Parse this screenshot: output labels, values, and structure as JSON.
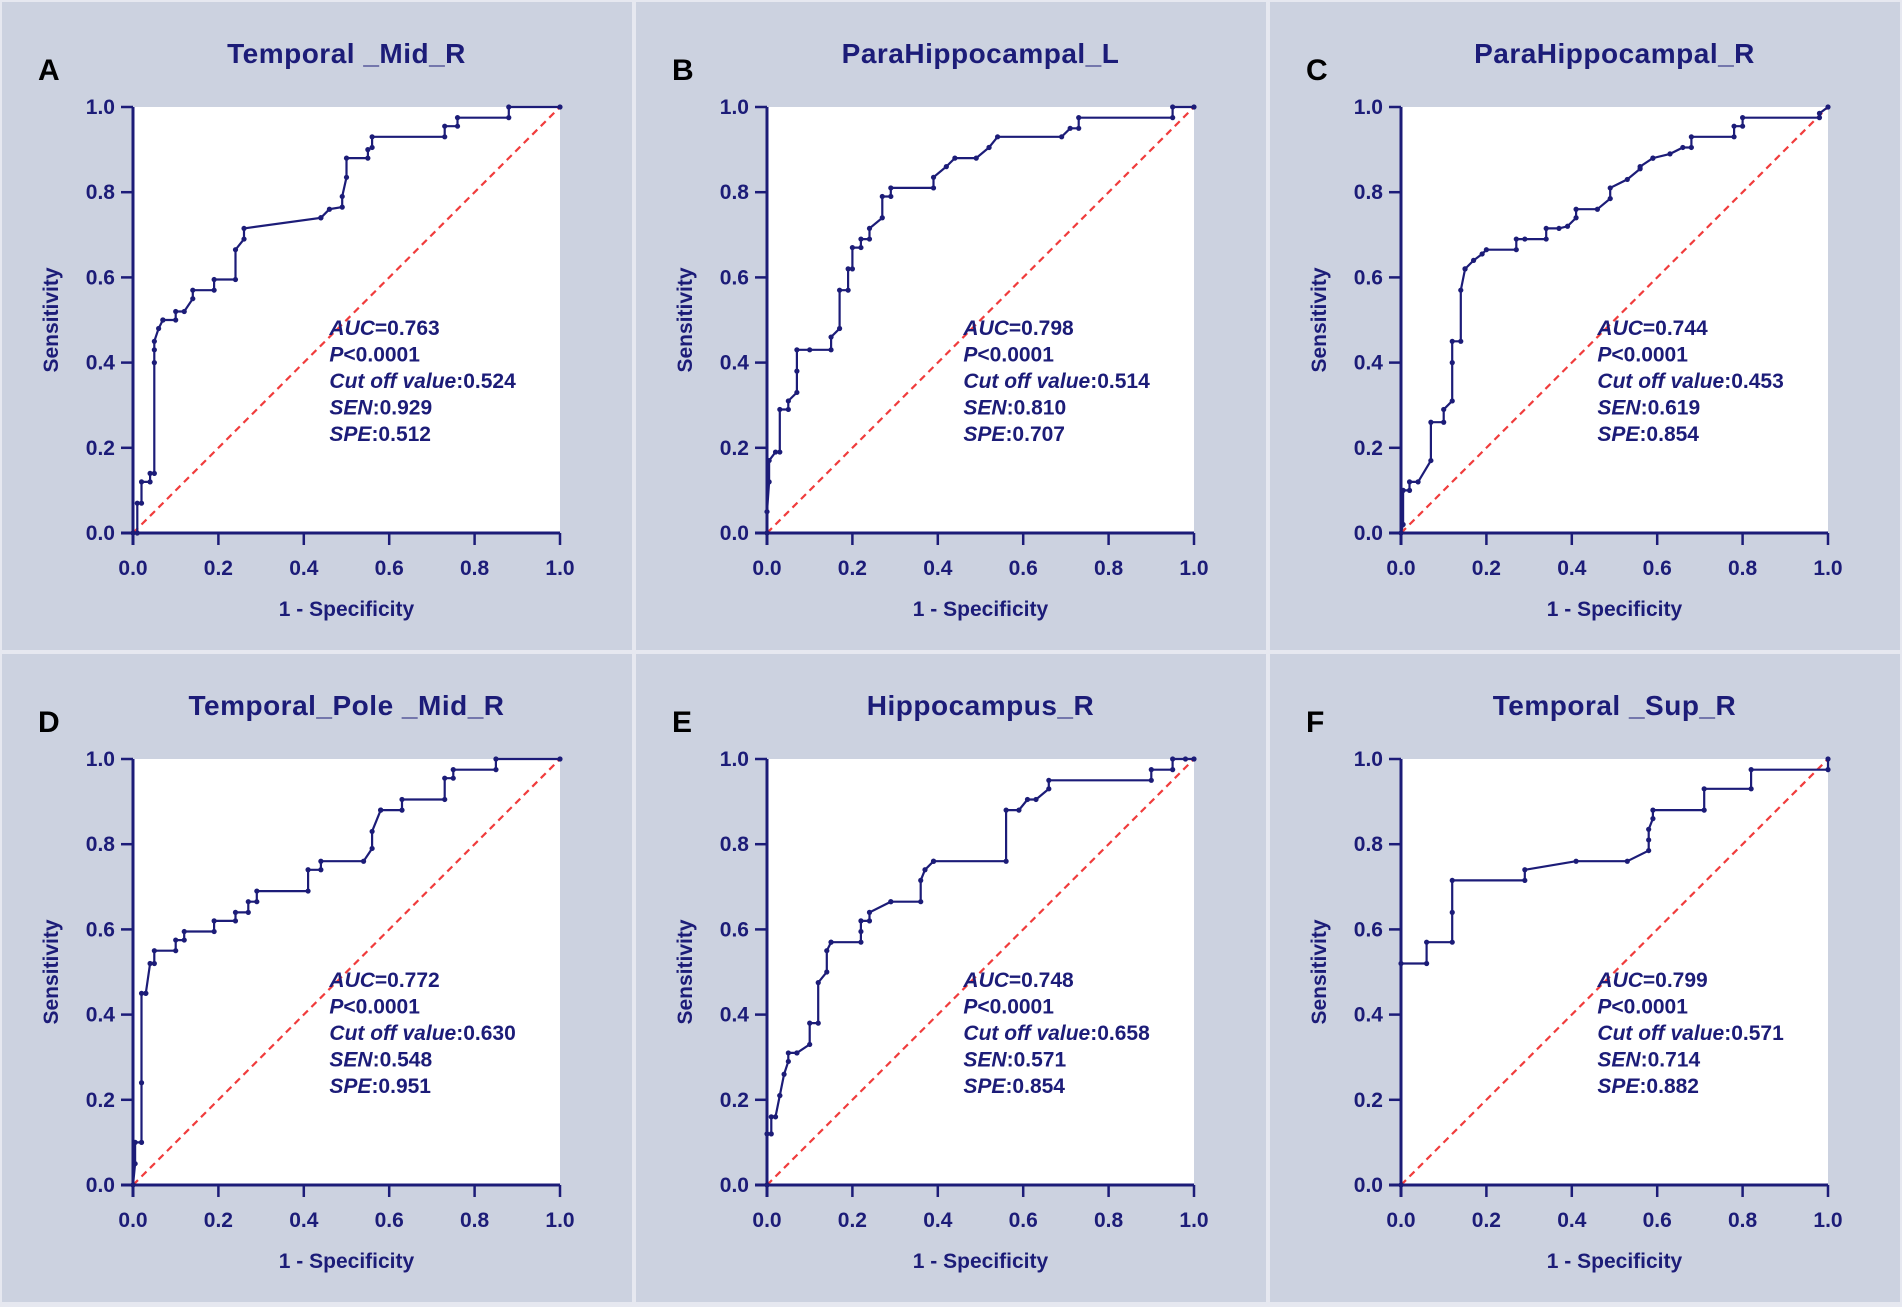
{
  "figure": {
    "xlabel": "1 - Specificity",
    "ylabel": "Sensitivity",
    "xticks": [
      "0.0",
      "0.2",
      "0.4",
      "0.6",
      "0.8",
      "1.0"
    ],
    "yticks": [
      "0.0",
      "0.2",
      "0.4",
      "0.6",
      "0.8",
      "1.0"
    ]
  },
  "chart_data": [
    {
      "type": "line",
      "panel": "A",
      "title": "Temporal _Mid_R",
      "xlabel": "1 - Specificity",
      "ylabel": "Sensitivity",
      "xlim": [
        0,
        1
      ],
      "ylim": [
        0,
        1
      ],
      "series": [
        {
          "name": "ROC",
          "x": [
            0,
            0.01,
            0.01,
            0.02,
            0.02,
            0.04,
            0.04,
            0.05,
            0.05,
            0.05,
            0.05,
            0.06,
            0.07,
            0.07,
            0.1,
            0.1,
            0.12,
            0.14,
            0.14,
            0.19,
            0.19,
            0.24,
            0.24,
            0.26,
            0.26,
            0.44,
            0.44,
            0.46,
            0.49,
            0.49,
            0.5,
            0.5,
            0.55,
            0.55,
            0.56,
            0.56,
            0.73,
            0.73,
            0.76,
            0.76,
            0.88,
            0.88,
            1.0
          ],
          "y": [
            0,
            0,
            0.07,
            0.07,
            0.12,
            0.12,
            0.14,
            0.14,
            0.4,
            0.43,
            0.45,
            0.48,
            0.5,
            0.5,
            0.5,
            0.52,
            0.52,
            0.55,
            0.57,
            0.57,
            0.595,
            0.595,
            0.665,
            0.69,
            0.715,
            0.74,
            0.74,
            0.76,
            0.765,
            0.79,
            0.835,
            0.88,
            0.88,
            0.9,
            0.905,
            0.93,
            0.93,
            0.955,
            0.955,
            0.975,
            0.975,
            1.0,
            1.0
          ]
        },
        {
          "name": "Reference",
          "x": [
            0,
            1
          ],
          "y": [
            0,
            1
          ]
        }
      ],
      "stats": {
        "auc": "0.763",
        "p": "0.0001",
        "cutoff": "0.524",
        "sen": "0.929",
        "spe": "0.512"
      }
    },
    {
      "type": "line",
      "panel": "B",
      "title": "ParaHippocampal_L",
      "xlabel": "1 - Specificity",
      "ylabel": "Sensitivity",
      "xlim": [
        0,
        1
      ],
      "ylim": [
        0,
        1
      ],
      "series": [
        {
          "name": "ROC",
          "x": [
            0,
            0,
            0.005,
            0.005,
            0.02,
            0.03,
            0.03,
            0.05,
            0.05,
            0.07,
            0.07,
            0.07,
            0.1,
            0.15,
            0.15,
            0.17,
            0.17,
            0.19,
            0.19,
            0.2,
            0.2,
            0.22,
            0.22,
            0.24,
            0.24,
            0.27,
            0.27,
            0.29,
            0.29,
            0.39,
            0.39,
            0.42,
            0.44,
            0.49,
            0.52,
            0.52,
            0.54,
            0.69,
            0.71,
            0.73,
            0.73,
            0.95,
            0.95,
            1.0
          ],
          "y": [
            0,
            0.05,
            0.12,
            0.17,
            0.19,
            0.19,
            0.29,
            0.29,
            0.31,
            0.33,
            0.38,
            0.43,
            0.43,
            0.43,
            0.46,
            0.48,
            0.57,
            0.57,
            0.62,
            0.62,
            0.67,
            0.67,
            0.69,
            0.69,
            0.715,
            0.74,
            0.79,
            0.79,
            0.81,
            0.81,
            0.835,
            0.86,
            0.88,
            0.88,
            0.905,
            0.905,
            0.93,
            0.93,
            0.95,
            0.95,
            0.975,
            0.975,
            1.0,
            1.0
          ]
        },
        {
          "name": "Reference",
          "x": [
            0,
            1
          ],
          "y": [
            0,
            1
          ]
        }
      ],
      "stats": {
        "auc": "0.798",
        "p": "0.0001",
        "cutoff": "0.514",
        "sen": "0.810",
        "spe": "0.707"
      }
    },
    {
      "type": "line",
      "panel": "C",
      "title": "ParaHippocampal_R",
      "xlabel": "1 - Specificity",
      "ylabel": "Sensitivity",
      "xlim": [
        0,
        1
      ],
      "ylim": [
        0,
        1
      ],
      "series": [
        {
          "name": "ROC",
          "x": [
            0,
            0.005,
            0.005,
            0.02,
            0.02,
            0.04,
            0.07,
            0.07,
            0.1,
            0.1,
            0.12,
            0.12,
            0.12,
            0.14,
            0.14,
            0.15,
            0.15,
            0.17,
            0.19,
            0.2,
            0.27,
            0.27,
            0.29,
            0.34,
            0.34,
            0.37,
            0.39,
            0.41,
            0.41,
            0.46,
            0.49,
            0.49,
            0.53,
            0.56,
            0.56,
            0.59,
            0.59,
            0.63,
            0.66,
            0.68,
            0.68,
            0.78,
            0.78,
            0.8,
            0.8,
            0.98,
            0.98,
            1.0
          ],
          "y": [
            0,
            0.02,
            0.1,
            0.1,
            0.12,
            0.12,
            0.17,
            0.26,
            0.26,
            0.29,
            0.31,
            0.4,
            0.45,
            0.45,
            0.57,
            0.62,
            0.62,
            0.64,
            0.655,
            0.665,
            0.665,
            0.69,
            0.69,
            0.69,
            0.715,
            0.715,
            0.72,
            0.74,
            0.76,
            0.76,
            0.785,
            0.81,
            0.83,
            0.855,
            0.86,
            0.88,
            0.88,
            0.89,
            0.905,
            0.905,
            0.93,
            0.93,
            0.955,
            0.955,
            0.975,
            0.975,
            0.985,
            1.0
          ]
        },
        {
          "name": "Reference",
          "x": [
            0,
            1
          ],
          "y": [
            0,
            1
          ]
        }
      ],
      "stats": {
        "auc": "0.744",
        "p": "0.0001",
        "cutoff": "0.453",
        "sen": "0.619",
        "spe": "0.854"
      }
    },
    {
      "type": "line",
      "panel": "D",
      "title": "Temporal_Pole _Mid_R",
      "xlabel": "1 - Specificity",
      "ylabel": "Sensitivity",
      "xlim": [
        0,
        1
      ],
      "ylim": [
        0,
        1
      ],
      "series": [
        {
          "name": "ROC",
          "x": [
            0,
            0.005,
            0.005,
            0.02,
            0.02,
            0.02,
            0.03,
            0.03,
            0.04,
            0.05,
            0.05,
            0.1,
            0.1,
            0.12,
            0.12,
            0.19,
            0.19,
            0.24,
            0.24,
            0.27,
            0.27,
            0.29,
            0.29,
            0.41,
            0.41,
            0.44,
            0.44,
            0.54,
            0.56,
            0.56,
            0.58,
            0.58,
            0.63,
            0.63,
            0.73,
            0.73,
            0.75,
            0.75,
            0.85,
            0.85,
            1.0
          ],
          "y": [
            0,
            0.05,
            0.1,
            0.1,
            0.24,
            0.45,
            0.45,
            0.45,
            0.52,
            0.52,
            0.55,
            0.55,
            0.575,
            0.575,
            0.595,
            0.595,
            0.62,
            0.62,
            0.64,
            0.64,
            0.665,
            0.665,
            0.69,
            0.69,
            0.74,
            0.74,
            0.76,
            0.76,
            0.79,
            0.83,
            0.88,
            0.88,
            0.88,
            0.905,
            0.905,
            0.955,
            0.955,
            0.975,
            0.975,
            1.0,
            1.0
          ]
        },
        {
          "name": "Reference",
          "x": [
            0,
            1
          ],
          "y": [
            0,
            1
          ]
        }
      ],
      "stats": {
        "auc": "0.772",
        "p": "0.0001",
        "cutoff": "0.630",
        "sen": "0.548",
        "spe": "0.951"
      }
    },
    {
      "type": "line",
      "panel": "E",
      "title": "Hippocampus_R",
      "xlabel": "1 - Specificity",
      "ylabel": "Sensitivity",
      "xlim": [
        0,
        1
      ],
      "ylim": [
        0,
        1
      ],
      "series": [
        {
          "name": "ROC",
          "x": [
            0,
            0,
            0.01,
            0.01,
            0.02,
            0.03,
            0.03,
            0.04,
            0.05,
            0.05,
            0.07,
            0.07,
            0.1,
            0.1,
            0.12,
            0.12,
            0.14,
            0.14,
            0.15,
            0.15,
            0.22,
            0.22,
            0.22,
            0.24,
            0.24,
            0.29,
            0.29,
            0.36,
            0.36,
            0.37,
            0.39,
            0.39,
            0.56,
            0.56,
            0.59,
            0.61,
            0.63,
            0.66,
            0.66,
            0.9,
            0.9,
            0.95,
            0.95,
            0.98,
            1.0
          ],
          "y": [
            0,
            0.12,
            0.12,
            0.16,
            0.16,
            0.21,
            0.21,
            0.26,
            0.29,
            0.31,
            0.31,
            0.31,
            0.33,
            0.38,
            0.38,
            0.475,
            0.5,
            0.55,
            0.57,
            0.57,
            0.57,
            0.595,
            0.62,
            0.62,
            0.64,
            0.665,
            0.665,
            0.665,
            0.715,
            0.74,
            0.76,
            0.76,
            0.76,
            0.88,
            0.88,
            0.905,
            0.905,
            0.93,
            0.95,
            0.95,
            0.975,
            0.975,
            1.0,
            1.0,
            1.0
          ]
        },
        {
          "name": "Reference",
          "x": [
            0,
            1
          ],
          "y": [
            0,
            1
          ]
        }
      ],
      "stats": {
        "auc": "0.748",
        "p": "0.0001",
        "cutoff": "0.658",
        "sen": "0.571",
        "spe": "0.854"
      }
    },
    {
      "type": "line",
      "panel": "F",
      "title": "Temporal _Sup_R",
      "xlabel": "1 - Specificity",
      "ylabel": "Sensitivity",
      "xlim": [
        0,
        1
      ],
      "ylim": [
        0,
        1
      ],
      "series": [
        {
          "name": "ROC",
          "x": [
            0,
            0,
            0.06,
            0.06,
            0.12,
            0.12,
            0.12,
            0.29,
            0.29,
            0.41,
            0.53,
            0.58,
            0.58,
            0.58,
            0.59,
            0.59,
            0.71,
            0.71,
            0.82,
            0.82,
            1.0,
            1.0
          ],
          "y": [
            0,
            0.52,
            0.52,
            0.57,
            0.57,
            0.64,
            0.715,
            0.715,
            0.74,
            0.76,
            0.76,
            0.785,
            0.81,
            0.835,
            0.86,
            0.88,
            0.88,
            0.93,
            0.93,
            0.975,
            0.975,
            1.0
          ]
        },
        {
          "name": "Reference",
          "x": [
            0,
            1
          ],
          "y": [
            0,
            1
          ]
        }
      ],
      "stats": {
        "auc": "0.799",
        "p": "0.0001",
        "cutoff": "0.571",
        "sen": "0.714",
        "spe": "0.882"
      }
    }
  ],
  "stat_labels": {
    "auc": "AUC",
    "p": "P",
    "lt": "<",
    "cutoff": "Cut off value",
    "sen": "SEN",
    "spe": "SPE"
  }
}
